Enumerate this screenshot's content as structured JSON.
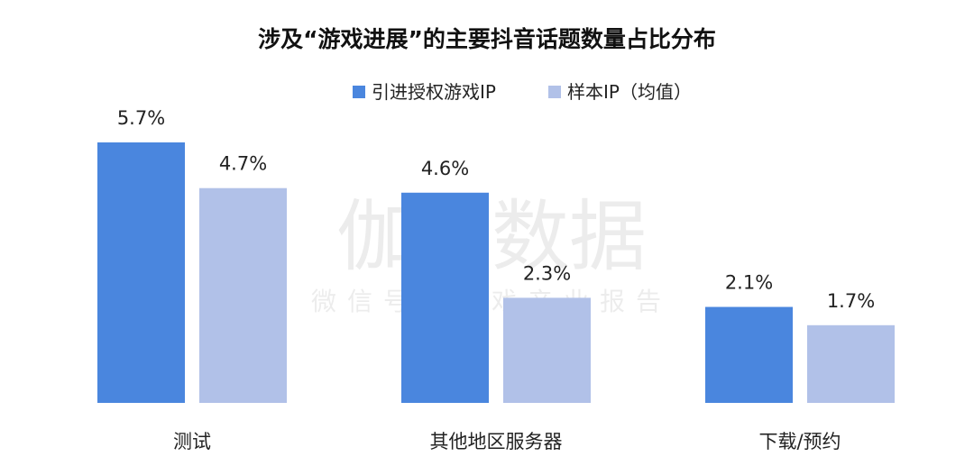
{
  "chart_data": {
    "type": "bar",
    "title": "涉及“游戏进展”的主要抖音话题数量占比分布",
    "categories": [
      "测试",
      "其他地区服务器",
      "下载/预约"
    ],
    "series": [
      {
        "name": "引进授权游戏IP",
        "values": [
          5.7,
          4.6,
          2.1
        ],
        "color": "#4A86DE"
      },
      {
        "name": "样本IP（均值）",
        "values": [
          4.7,
          2.3,
          1.7
        ],
        "color": "#B1C1E8"
      }
    ],
    "value_suffix": "%",
    "ylim": [
      0,
      5.7
    ],
    "grid": false,
    "legend_position": "top-center"
  },
  "watermark": {
    "main": "伽马数据",
    "sub": "微信号：游戏产业报告"
  }
}
